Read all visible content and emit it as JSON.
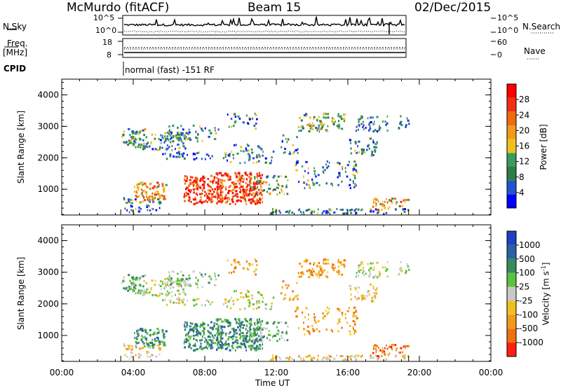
{
  "header": {
    "station": "McMurdo (fitACF)",
    "beam": "Beam 15",
    "date": "02/Dec/2015"
  },
  "top_panels": {
    "nsky_label": "N.Sky",
    "nsky_ticks": [
      "10^5",
      "10^0"
    ],
    "nsearch_label": "N.Search",
    "freq_label": "Freq.",
    "freq_unit": "[MHz]",
    "freq_ticks": [
      "18",
      "8"
    ],
    "nave_label": "Nave",
    "nave_ticks": [
      "60",
      "0"
    ],
    "cpid_label": "CPID",
    "cpid_text": "normal (fast) -151 RF"
  },
  "colors": {
    "power": [
      "#0000ff",
      "#2255cc",
      "#2e7d46",
      "#3c9a5a",
      "#f0c020",
      "#f29a1a",
      "#f06a10",
      "#ee3010",
      "#ff0000"
    ],
    "velocity": [
      "#2040c0",
      "#2a60a8",
      "#3a8a5a",
      "#5cc040",
      "#c8c8c8",
      "#f0c020",
      "#f29a1a",
      "#f07010",
      "#ff2010"
    ]
  },
  "chart_data": [
    {
      "type": "heatmap",
      "title": "Power",
      "xlabel": "Time UT",
      "ylabel": "Slant Range [km]",
      "x_ticks": [
        "00:00",
        "04:00",
        "08:00",
        "12:00",
        "16:00",
        "20:00",
        "00:00"
      ],
      "x_range_hours": [
        0,
        24
      ],
      "data_extent_hours": [
        3.3,
        19.4
      ],
      "y_ticks": [
        1000,
        2000,
        3000,
        4000
      ],
      "ylim": [
        180,
        4500
      ],
      "colorbar_label": "Power [dB]",
      "colorbar_ticks": [
        4,
        8,
        12,
        16,
        20,
        24,
        28
      ],
      "colorbar_range": [
        0,
        32
      ]
    },
    {
      "type": "heatmap",
      "title": "Velocity",
      "xlabel": "Time UT",
      "ylabel": "Slant Range [km]",
      "x_ticks": [
        "00:00",
        "04:00",
        "08:00",
        "12:00",
        "16:00",
        "20:00",
        "00:00"
      ],
      "x_range_hours": [
        0,
        24
      ],
      "data_extent_hours": [
        3.3,
        19.4
      ],
      "y_ticks": [
        1000,
        2000,
        3000,
        4000
      ],
      "ylim": [
        180,
        4500
      ],
      "colorbar_label": "Velocity [m s^-1]",
      "colorbar_ticks": [
        "1000",
        "500",
        "100",
        "25",
        "-25",
        "-100",
        "-500",
        "-1000"
      ]
    }
  ]
}
